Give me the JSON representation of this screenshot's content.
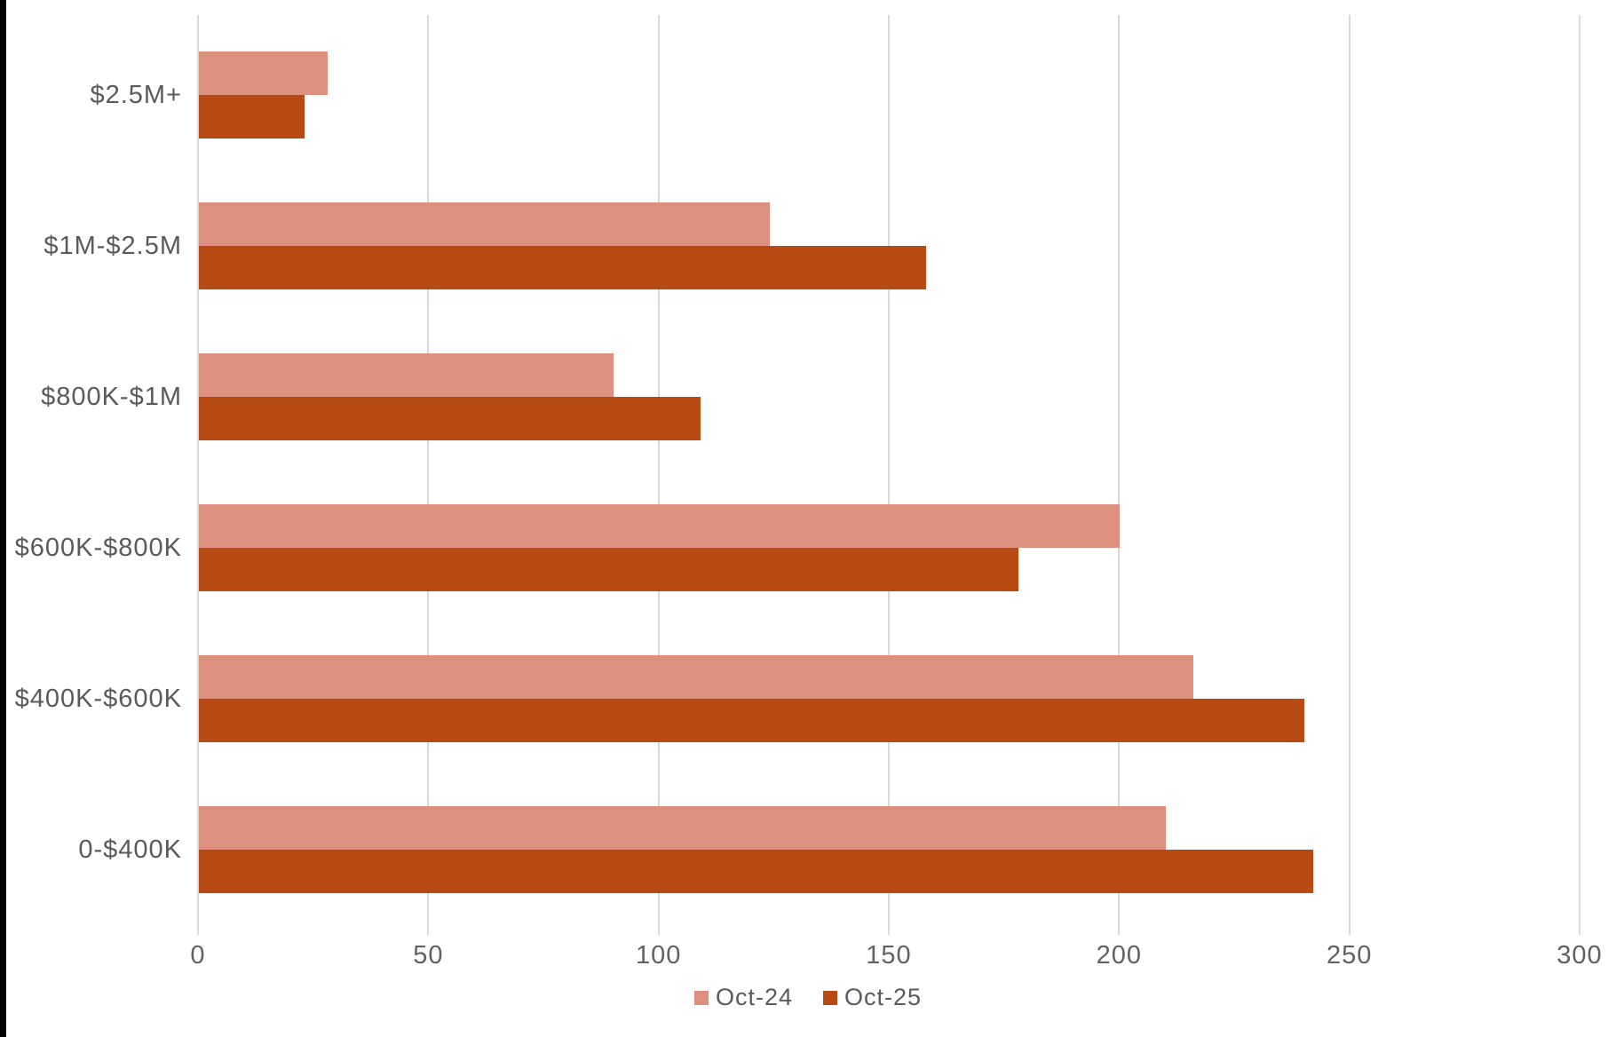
{
  "page": {
    "background_color": "#ffffff",
    "left_strip_color": "#000000"
  },
  "chart_data": {
    "type": "bar",
    "orientation": "horizontal",
    "title": "",
    "xlabel": "",
    "ylabel": "",
    "categories": [
      "$2.5M+",
      "$1M-$2.5M",
      "$800K-$1M",
      "$600K-$800K",
      "$400K-$600K",
      "0-$400K"
    ],
    "series": [
      {
        "name": "Oct-24",
        "color": "#DD907E",
        "values": [
          28,
          124,
          90,
          200,
          216,
          210
        ]
      },
      {
        "name": "Oct-25",
        "color": "#B84B14",
        "values": [
          23,
          158,
          109,
          178,
          240,
          242
        ]
      }
    ],
    "xlim": [
      0,
      300
    ],
    "x_ticks": [
      0,
      50,
      100,
      150,
      200,
      250,
      300
    ],
    "grid": true,
    "gridline_color": "#D9D9D9",
    "axis_text_color": "#5a5a5a",
    "legend_position": "bottom"
  }
}
